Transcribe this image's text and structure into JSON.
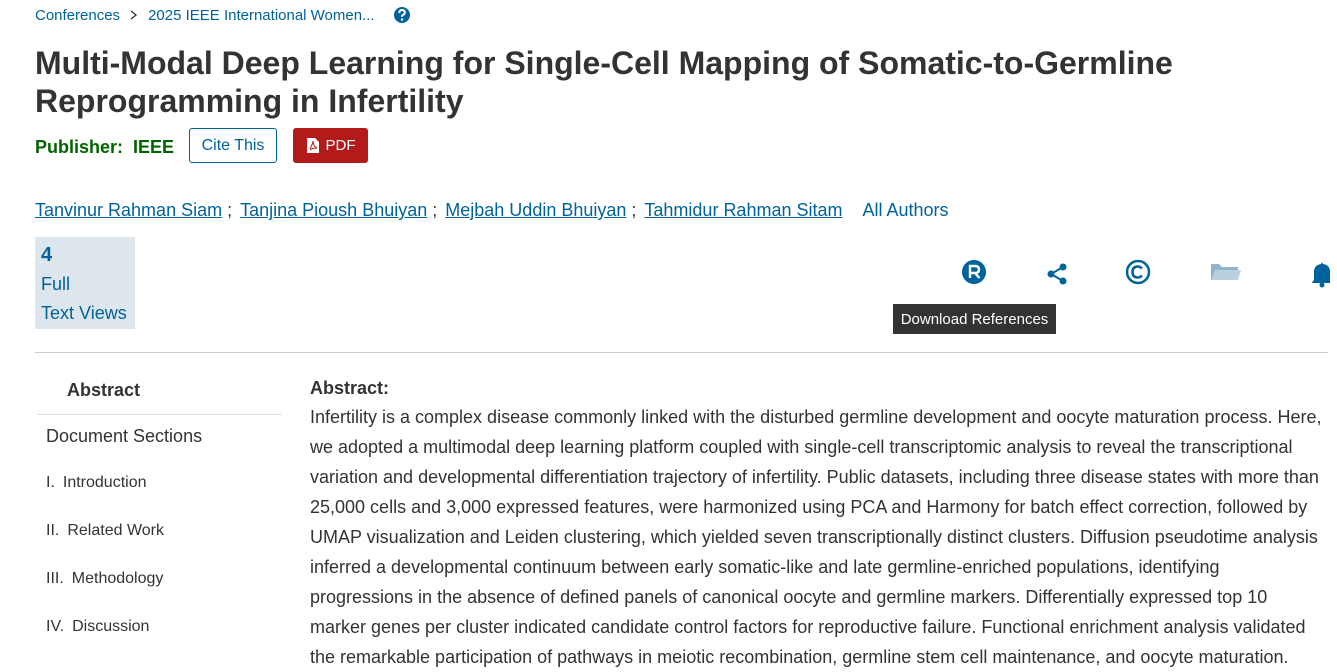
{
  "breadcrumb": [
    "Conferences",
    "2025 IEEE International Women..."
  ],
  "title": "Multi-Modal Deep Learning for Single-Cell Mapping of Somatic-to-Germline Reprogramming in Infertility",
  "publisher": {
    "label": "Publisher:",
    "name": "IEEE"
  },
  "buttons": {
    "cite": "Cite This",
    "pdf": "PDF"
  },
  "authors": [
    "Tanvinur Rahman Siam",
    "Tanjina Pioush Bhuiyan",
    "Mejbah Uddin Bhuiyan",
    "Tahmidur Rahman Sitam"
  ],
  "author_separator": ";",
  "all_authors": "All Authors",
  "metrics": {
    "count": 4,
    "label_lines": [
      "Full",
      "Text Views"
    ]
  },
  "tooltip": "Download References",
  "sidebar": {
    "active": "Abstract",
    "heading": "Document Sections",
    "sections": [
      {
        "numeral": "I.",
        "title": "Introduction"
      },
      {
        "numeral": "II.",
        "title": "Related Work"
      },
      {
        "numeral": "III.",
        "title": "Methodology"
      },
      {
        "numeral": "IV.",
        "title": "Discussion"
      }
    ]
  },
  "abstract": {
    "heading": "Abstract:",
    "text": "Infertility is a complex disease commonly linked with the disturbed germline development and oocyte maturation process. Here, we adopted a multimodal deep learning platform coupled with single-cell transcriptomic analysis to reveal the transcriptional variation and developmental differentiation trajectory of infertility. Public datasets, including three disease states with more than 25,000 cells and 3,000 expressed features, were harmonized using PCA and Harmony for batch effect correction, followed by UMAP visualization and Leiden clustering, which yielded seven transcriptionally distinct clusters. Diffusion pseudotime analysis inferred a developmental continuum between early somatic-like and late germline-enriched populations, identifying progressions in the absence of defined panels of canonical oocyte and germline markers. Differentially expressed top 10 marker genes per cluster indicated candidate control factors for reproductive failure. Functional enrichment analysis validated the remarkable participation of pathways in meiotic recombination, germline stem cell maintenance, and oocyte maturation."
  }
}
